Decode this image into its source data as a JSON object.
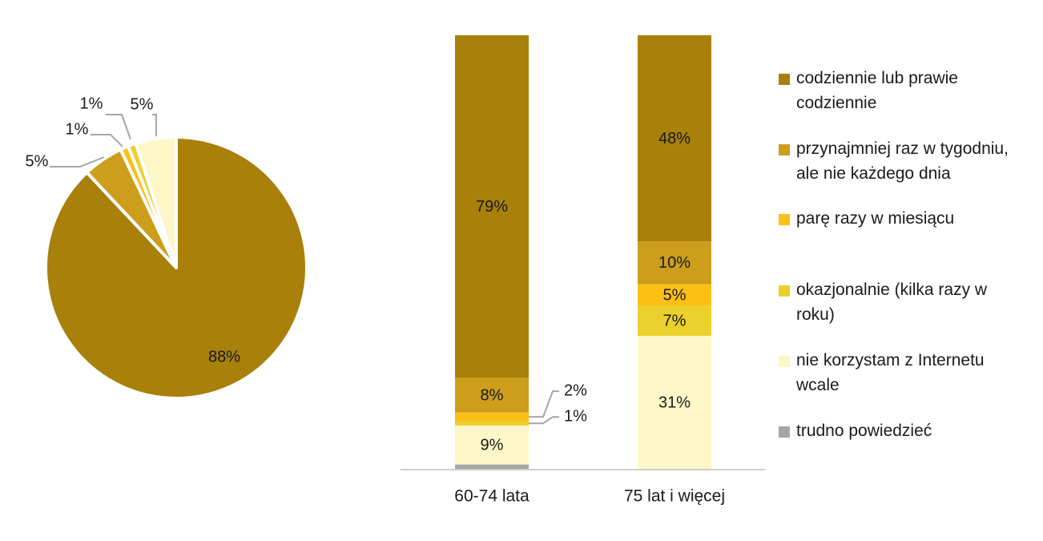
{
  "colors": {
    "daily": "#a8800a",
    "weekly": "#cc9e1c",
    "monthly": "#fcbf16",
    "occasional": "#ecd02c",
    "never": "#fdf7c8",
    "hard_to_say": "#a6a6a6",
    "leader": "#a6a6a6",
    "axis": "#bfbfbf"
  },
  "chart_data": [
    {
      "type": "pie",
      "slices": [
        {
          "series": "codziennie lub prawie codziennie",
          "value": 88,
          "label": "88%",
          "color": "#a8800a"
        },
        {
          "series": "przynajmniej raz w tygodniu, ale nie każdego dnia",
          "value": 5,
          "label": "5%",
          "color": "#cc9e1c"
        },
        {
          "series": "parę razy w miesiącu",
          "value": 1,
          "label": "1%",
          "color": "#fcbf16"
        },
        {
          "series": "okazjonalnie (kilka razy w roku)",
          "value": 1,
          "label": "1%",
          "color": "#ecd02c"
        },
        {
          "series": "nie korzystam z Internetu wcale",
          "value": 5,
          "label": "5%",
          "color": "#fdf7c8"
        }
      ]
    },
    {
      "type": "bar",
      "stacked": true,
      "categories": [
        "60-74 lata",
        "75 lat i więcej"
      ],
      "series": [
        {
          "name": "codziennie lub prawie codziennie",
          "color": "#a8800a",
          "values": [
            79,
            48
          ],
          "labels": [
            "79%",
            "48%"
          ]
        },
        {
          "name": "przynajmniej raz w tygodniu, ale nie każdego dnia",
          "color": "#cc9e1c",
          "values": [
            8,
            10
          ],
          "labels": [
            "8%",
            "10%"
          ]
        },
        {
          "name": "parę razy w miesiącu",
          "color": "#fcbf16",
          "values": [
            2,
            5
          ],
          "labels": [
            "2%",
            "5%"
          ]
        },
        {
          "name": "okazjonalnie (kilka razy w roku)",
          "color": "#ecd02c",
          "values": [
            1,
            7
          ],
          "labels": [
            "1%",
            "7%"
          ]
        },
        {
          "name": "nie korzystam z Internetu wcale",
          "color": "#fdf7c8",
          "values": [
            9,
            31
          ],
          "labels": [
            "9%",
            "31%"
          ]
        },
        {
          "name": "trudno powiedzieć",
          "color": "#a6a6a6",
          "values": [
            1,
            0
          ],
          "labels": [
            "",
            ""
          ]
        }
      ],
      "ylim": [
        0,
        100
      ],
      "legend": "right",
      "grid": false
    }
  ],
  "legend": {
    "items": [
      {
        "label": "codziennie lub prawie codziennie",
        "color": "#a8800a"
      },
      {
        "label": "przynajmniej raz w tygodniu, ale nie każdego dnia",
        "color": "#cc9e1c"
      },
      {
        "label": "parę razy w miesiącu",
        "color": "#fcbf16"
      },
      {
        "label": "okazjonalnie (kilka razy w roku)",
        "color": "#ecd02c"
      },
      {
        "label": "nie korzystam z Internetu wcale",
        "color": "#fdf7c8"
      },
      {
        "label": "trudno powiedzieć",
        "color": "#a6a6a6"
      }
    ]
  }
}
